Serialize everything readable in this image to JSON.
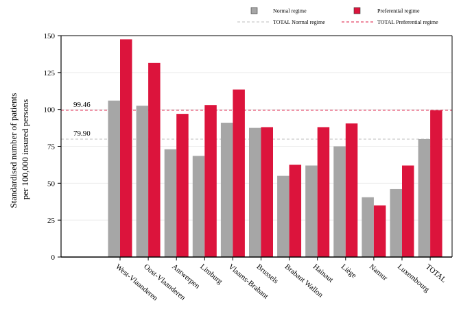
{
  "chart_data": {
    "type": "bar",
    "ylabel_lines": [
      "Standardised number of patients",
      "per 100,000 insured persons"
    ],
    "ylim": [
      0,
      150
    ],
    "yticks": [
      0,
      25,
      50,
      75,
      100,
      125,
      150
    ],
    "grid": true,
    "legend_position": "top-right",
    "categories": [
      "West-Vlaanderen",
      "Oost-Vlaanderen",
      "Antwerpen",
      "Limburg",
      "Vlaams-Brabant",
      "Brussels",
      "Brabant Wallon",
      "Hainaut",
      "Liège",
      "Namur",
      "Luxembourg",
      "TOTAL"
    ],
    "series": [
      {
        "name": "Normal regime",
        "color": "#a6a6a6",
        "values": [
          106,
          102.5,
          73,
          68.5,
          91,
          87.5,
          55,
          62,
          75,
          40.5,
          46,
          79.9
        ]
      },
      {
        "name": "Preferential regime",
        "color": "#dc143c",
        "values": [
          147.5,
          131.5,
          97,
          103,
          113.5,
          88,
          62.5,
          88,
          90.5,
          35,
          62,
          99.46
        ]
      }
    ],
    "reference_lines": [
      {
        "name": "TOTAL Normal regime",
        "value": 79.9,
        "label": "79.90",
        "color": "#bdbdbd",
        "style": "dashed"
      },
      {
        "name": "TOTAL Preferential regime",
        "value": 99.46,
        "label": "99.46",
        "color": "#dc143c",
        "style": "dashed"
      }
    ]
  }
}
